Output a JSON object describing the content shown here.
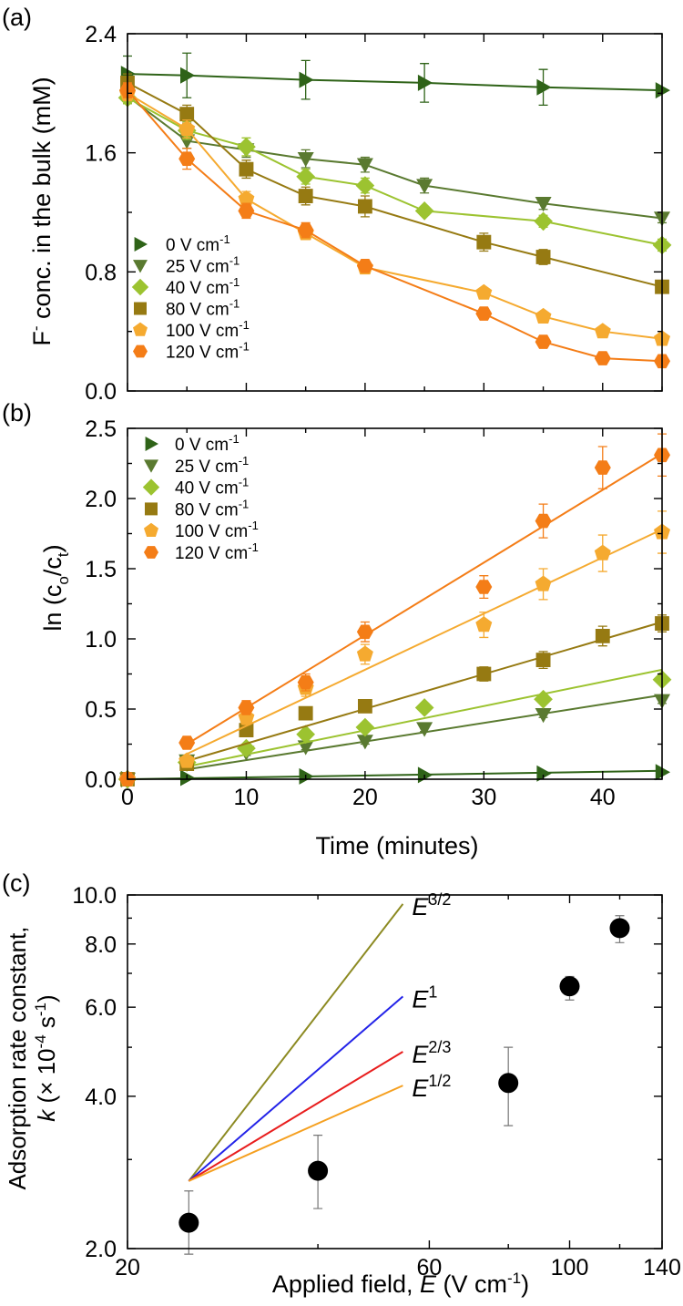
{
  "chart_data": [
    {
      "id": "a",
      "panel_label": "(a)",
      "type": "line",
      "ylabel_sup": "-",
      "ylabel_main": "F",
      "ylabel_rest": " conc. in the bulk (mM)",
      "xlim": [
        0,
        45
      ],
      "ylim": [
        0,
        2.4
      ],
      "yticks": [
        "0.0",
        "0.8",
        "1.6",
        "2.4"
      ],
      "ytick_values": [
        0,
        0.8,
        1.6,
        2.4
      ],
      "legend_position": "lower-left",
      "series": [
        {
          "name": "0 V cm",
          "unit_sup": "-1",
          "color": "#2f6318",
          "marker": "triangle-right",
          "x": [
            0,
            5,
            15,
            25,
            35,
            45
          ],
          "y": [
            2.13,
            2.12,
            2.09,
            2.07,
            2.04,
            2.02
          ],
          "err": [
            0.12,
            0.15,
            0.13,
            0.13,
            0.12,
            0.0
          ]
        },
        {
          "name": "25 V cm",
          "unit_sup": "-1",
          "color": "#5a7a30",
          "marker": "triangle-down",
          "x": [
            0,
            5,
            10,
            15,
            20,
            25,
            35,
            45
          ],
          "y": [
            1.98,
            1.68,
            1.62,
            1.56,
            1.52,
            1.38,
            1.26,
            1.16
          ],
          "err": [
            0.05,
            0.05,
            0.05,
            0.06,
            0.05,
            0.05,
            0.04,
            0.03
          ]
        },
        {
          "name": "40 V cm",
          "unit_sup": "-1",
          "color": "#9cc330",
          "marker": "diamond",
          "x": [
            0,
            5,
            10,
            15,
            20,
            25,
            35,
            45
          ],
          "y": [
            1.97,
            1.75,
            1.64,
            1.44,
            1.38,
            1.21,
            1.14,
            0.98
          ],
          "err": [
            0.04,
            0.06,
            0.06,
            0.05,
            0.05,
            0.03,
            0.04,
            0.04
          ]
        },
        {
          "name": "80 V cm",
          "unit_sup": "-1",
          "color": "#967a12",
          "marker": "square",
          "x": [
            0,
            5,
            10,
            15,
            20,
            30,
            35,
            45
          ],
          "y": [
            2.07,
            1.86,
            1.49,
            1.31,
            1.24,
            1.0,
            0.9,
            0.7
          ],
          "err": [
            0.06,
            0.06,
            0.06,
            0.06,
            0.07,
            0.06,
            0.05,
            0.04
          ]
        },
        {
          "name": "100 V cm",
          "unit_sup": "-1",
          "color": "#f5aa30",
          "marker": "pentagon",
          "x": [
            0,
            5,
            10,
            15,
            20,
            30,
            35,
            40,
            45
          ],
          "y": [
            2.0,
            1.76,
            1.29,
            1.06,
            0.83,
            0.66,
            0.5,
            0.4,
            0.35
          ],
          "err": [
            0.05,
            0.06,
            0.05,
            0.04,
            0.04,
            0.03,
            0.03,
            0.03,
            0.03
          ]
        },
        {
          "name": "120 V cm",
          "unit_sup": "-1",
          "color": "#f47d17",
          "marker": "hexagon",
          "x": [
            0,
            5,
            10,
            15,
            20,
            30,
            35,
            40,
            45
          ],
          "y": [
            2.02,
            1.56,
            1.21,
            1.08,
            0.84,
            0.52,
            0.33,
            0.22,
            0.2
          ],
          "err": [
            0.05,
            0.07,
            0.05,
            0.05,
            0.03,
            0.03,
            0.03,
            0.03,
            0.03
          ]
        }
      ]
    },
    {
      "id": "b",
      "panel_label": "(b)",
      "type": "scatter",
      "ylabel_main": "ln (c",
      "ylabel_sub1": "o",
      "ylabel_mid": "/c",
      "ylabel_sub2": "t",
      "ylabel_end": ")",
      "xlabel": "Time (minutes)",
      "xlim": [
        0,
        45
      ],
      "ylim": [
        0,
        2.5
      ],
      "xticks": [
        "0",
        "10",
        "20",
        "30",
        "40"
      ],
      "xtick_values": [
        0,
        10,
        20,
        30,
        40
      ],
      "yticks": [
        "0.0",
        "0.5",
        "1.0",
        "1.5",
        "2.0",
        "2.5"
      ],
      "ytick_values": [
        0,
        0.5,
        1.0,
        1.5,
        2.0,
        2.5
      ],
      "legend_position": "top-left",
      "series": [
        {
          "name": "0 V cm",
          "unit_sup": "-1",
          "color": "#2f6318",
          "marker": "triangle-right",
          "x": [
            0,
            5,
            15,
            25,
            35,
            45
          ],
          "y": [
            0.0,
            0.01,
            0.02,
            0.03,
            0.04,
            0.05
          ],
          "err": [
            0,
            0,
            0,
            0,
            0,
            0
          ],
          "fit": [
            [
              0,
              0.0
            ],
            [
              45,
              0.06
            ]
          ]
        },
        {
          "name": "25 V cm",
          "unit_sup": "-1",
          "color": "#5a7a30",
          "marker": "triangle-down",
          "x": [
            0,
            5,
            10,
            15,
            20,
            25,
            35,
            45
          ],
          "y": [
            0.0,
            0.13,
            0.19,
            0.23,
            0.27,
            0.36,
            0.46,
            0.56
          ],
          "err": [
            0,
            0.02,
            0.02,
            0.02,
            0.02,
            0.02,
            0.02,
            0.02
          ],
          "fit": [
            [
              5,
              0.07
            ],
            [
              45,
              0.6
            ]
          ]
        },
        {
          "name": "40 V cm",
          "unit_sup": "-1",
          "color": "#9cc330",
          "marker": "diamond",
          "x": [
            0,
            5,
            10,
            15,
            20,
            25,
            35,
            45
          ],
          "y": [
            0.0,
            0.12,
            0.22,
            0.32,
            0.37,
            0.51,
            0.57,
            0.71
          ],
          "err": [
            0,
            0.02,
            0.02,
            0.03,
            0.03,
            0.03,
            0.03,
            0.03
          ],
          "fit": [
            [
              5,
              0.09
            ],
            [
              45,
              0.78
            ]
          ]
        },
        {
          "name": "80 V cm",
          "unit_sup": "-1",
          "color": "#967a12",
          "marker": "square",
          "x": [
            0,
            5,
            10,
            15,
            20,
            30,
            35,
            40,
            45
          ],
          "y": [
            0.0,
            0.11,
            0.35,
            0.47,
            0.52,
            0.75,
            0.85,
            1.02,
            1.11
          ],
          "err": [
            0,
            0.03,
            0.04,
            0.04,
            0.04,
            0.05,
            0.06,
            0.07,
            0.06
          ],
          "fit": [
            [
              5,
              0.13
            ],
            [
              45,
              1.12
            ]
          ]
        },
        {
          "name": "100 V cm",
          "unit_sup": "-1",
          "color": "#f5aa30",
          "marker": "pentagon",
          "x": [
            0,
            5,
            10,
            15,
            20,
            30,
            35,
            40,
            45
          ],
          "y": [
            0.0,
            0.13,
            0.44,
            0.65,
            0.89,
            1.1,
            1.39,
            1.61,
            1.76
          ],
          "err": [
            0,
            0.03,
            0.05,
            0.06,
            0.07,
            0.09,
            0.11,
            0.13,
            0.15
          ],
          "fit": [
            [
              5,
              0.18
            ],
            [
              45,
              1.78
            ]
          ]
        },
        {
          "name": "120 V cm",
          "unit_sup": "-1",
          "color": "#f47d17",
          "marker": "hexagon",
          "x": [
            0,
            5,
            10,
            15,
            20,
            30,
            35,
            40,
            45
          ],
          "y": [
            0.0,
            0.26,
            0.51,
            0.69,
            1.05,
            1.37,
            1.84,
            2.22,
            2.31
          ],
          "err": [
            0,
            0.03,
            0.05,
            0.06,
            0.07,
            0.08,
            0.12,
            0.15,
            0.15
          ],
          "fit": [
            [
              5,
              0.25
            ],
            [
              45,
              2.32
            ]
          ]
        }
      ]
    },
    {
      "id": "c",
      "panel_label": "(c)",
      "type": "scatter",
      "scale": "log-log",
      "xlabel_main": "Applied field, ",
      "xlabel_var": "E",
      "xlabel_rest": " (V cm",
      "xlabel_sup": "-1",
      "xlabel_end": ")",
      "ylabel_line1": "Adsorption rate constant,",
      "ylabel_var": "k",
      "ylabel_rest": " (× 10",
      "ylabel_sup1": "-4",
      "ylabel_mid": " s",
      "ylabel_sup2": "-1",
      "ylabel_end": ")",
      "xlim": [
        20,
        140
      ],
      "ylim": [
        2.0,
        10.0
      ],
      "xticks": [
        "20",
        "60",
        "100",
        "140"
      ],
      "xtick_values": [
        20,
        60,
        100,
        140
      ],
      "yticks": [
        "2.0",
        "4.0",
        "6.0",
        "8.0",
        "10.0"
      ],
      "ytick_values": [
        2.0,
        4.0,
        6.0,
        8.0,
        10.0
      ],
      "points": {
        "color": "#000000",
        "x": [
          25,
          40,
          80,
          100,
          120
        ],
        "y": [
          2.25,
          2.85,
          4.25,
          6.6,
          8.6
        ],
        "err_low": [
          0.3,
          0.45,
          0.75,
          0.4,
          0.55
        ],
        "err_high": [
          0.35,
          0.5,
          0.75,
          0.3,
          0.5
        ]
      },
      "scaling_lines": [
        {
          "label": "E",
          "exp_label": "3/2",
          "color": "#8c8a22",
          "from": [
            25,
            2.72
          ],
          "to": [
            54.5,
            9.6
          ]
        },
        {
          "label": "E",
          "exp_label": "1",
          "color": "#2323e8",
          "from": [
            25,
            2.72
          ],
          "to": [
            54.5,
            6.3
          ]
        },
        {
          "label": "E",
          "exp_label": "2/3",
          "color": "#e81e1e",
          "from": [
            25,
            2.72
          ],
          "to": [
            54.5,
            4.9
          ]
        },
        {
          "label": "E",
          "exp_label": "1/2",
          "color": "#f5a020",
          "from": [
            25,
            2.72
          ],
          "to": [
            54.5,
            4.2
          ]
        }
      ]
    }
  ]
}
